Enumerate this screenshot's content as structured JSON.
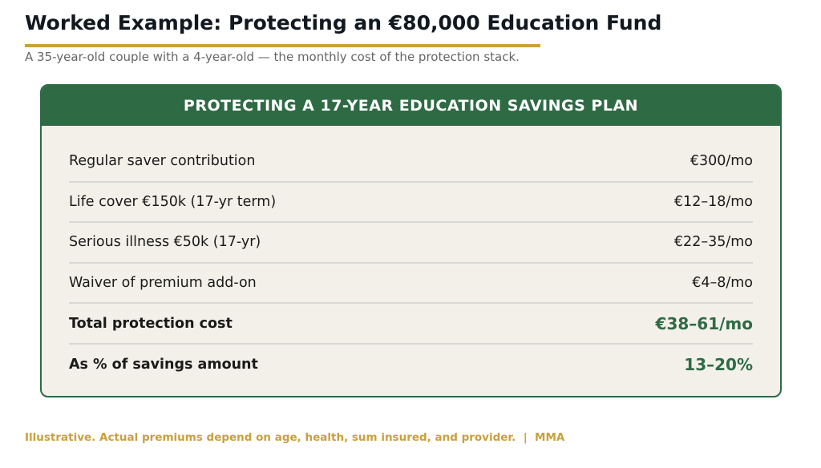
{
  "header": {
    "title": "Worked Example: Protecting an €80,000 Education Fund",
    "subtitle": "A 35-year-old couple with a 4-year-old — the monthly cost of the protection stack."
  },
  "table": {
    "title": "PROTECTING A 17-YEAR EDUCATION SAVINGS PLAN",
    "rows": [
      [
        "Regular saver contribution",
        "€300/mo"
      ],
      [
        "Life cover €150k (17-yr term)",
        "€12–18/mo"
      ],
      [
        "Serious illness €50k (17-yr)",
        "€22–35/mo"
      ],
      [
        "Waiver of premium add-on",
        "€4–8/mo"
      ],
      [
        "Total protection cost",
        "€38–61/mo"
      ],
      [
        "As % of savings amount",
        "13–20%"
      ]
    ]
  },
  "footer": {
    "note": "Illustrative. Actual premiums depend on age, health, sum insured, and provider.",
    "source": "MMA"
  }
}
